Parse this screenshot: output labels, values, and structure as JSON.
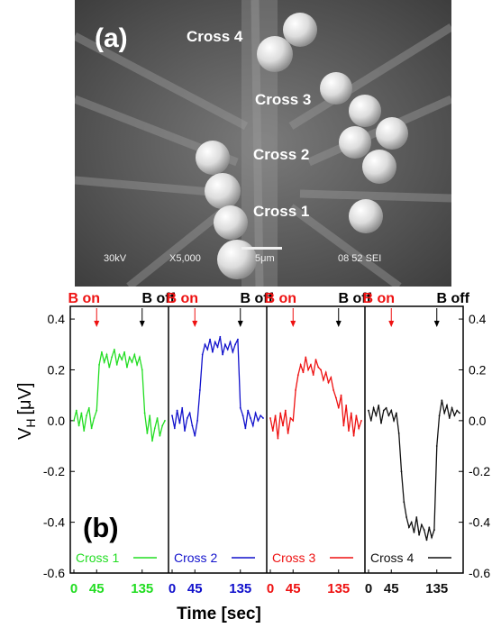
{
  "sem": {
    "panel_label": "(a)",
    "cross_labels": [
      "Cross 4",
      "Cross 3",
      "Cross 2",
      "Cross 1"
    ],
    "footer": {
      "voltage": "30kV",
      "magnification": "X5,000",
      "scale": "5μm",
      "code": "08 52 SEI"
    }
  },
  "chart_data": {
    "type": "line",
    "panel_label": "(b)",
    "xlabel": "Time [sec]",
    "ylabel": "V",
    "ylabel_sub": "H",
    "ylabel_unit": "[μV]",
    "ylim": [
      -0.6,
      0.45
    ],
    "yticks": [
      0.4,
      0.2,
      0.0,
      -0.2,
      -0.4,
      -0.6
    ],
    "ytick_labels": [
      "0.4",
      "0.2",
      "0.0",
      "-0.2",
      "-0.4",
      "-0.6"
    ],
    "xlim": [
      0,
      180
    ],
    "xtick_values": [
      0,
      45,
      135
    ],
    "xtick_labels": [
      "0",
      "45",
      "135"
    ],
    "annotations": {
      "b_on": "B on",
      "b_off": "B off",
      "b_on_time": 45,
      "b_off_time": 135
    },
    "series": [
      {
        "name": "Cross 1",
        "color": "#22dd22",
        "base": 0.0,
        "step": 0.25,
        "x": [
          0,
          5,
          10,
          15,
          20,
          25,
          30,
          35,
          40,
          45,
          50,
          55,
          60,
          65,
          70,
          75,
          80,
          85,
          90,
          95,
          100,
          105,
          110,
          115,
          120,
          125,
          130,
          135,
          140,
          145,
          150,
          155,
          160,
          165,
          170,
          175,
          180
        ],
        "values": [
          0.0,
          0.04,
          -0.02,
          0.03,
          -0.04,
          0.02,
          0.05,
          -0.03,
          0.01,
          0.04,
          0.22,
          0.27,
          0.23,
          0.26,
          0.21,
          0.25,
          0.28,
          0.22,
          0.26,
          0.24,
          0.27,
          0.21,
          0.25,
          0.23,
          0.26,
          0.22,
          0.25,
          0.2,
          0.03,
          -0.05,
          0.02,
          -0.08,
          -0.03,
          0.01,
          -0.06,
          -0.02,
          0.0
        ]
      },
      {
        "name": "Cross 2",
        "color": "#1111cc",
        "base": 0.0,
        "step": 0.3,
        "x": [
          0,
          5,
          10,
          15,
          20,
          25,
          30,
          35,
          40,
          45,
          50,
          55,
          60,
          65,
          70,
          75,
          80,
          85,
          90,
          95,
          100,
          105,
          110,
          115,
          120,
          125,
          130,
          135,
          140,
          145,
          150,
          155,
          160,
          165,
          170,
          175,
          180
        ],
        "values": [
          0.02,
          -0.03,
          0.04,
          -0.01,
          0.05,
          -0.04,
          0.01,
          0.03,
          -0.02,
          -0.06,
          0.0,
          0.12,
          0.26,
          0.3,
          0.28,
          0.32,
          0.27,
          0.31,
          0.29,
          0.33,
          0.26,
          0.3,
          0.28,
          0.31,
          0.27,
          0.3,
          0.32,
          0.05,
          0.02,
          -0.03,
          0.04,
          0.01,
          -0.02,
          0.03,
          0.0,
          0.02,
          0.01
        ]
      },
      {
        "name": "Cross 3",
        "color": "#ee1111",
        "base": 0.0,
        "step": 0.2,
        "x": [
          0,
          5,
          10,
          15,
          20,
          25,
          30,
          35,
          40,
          45,
          50,
          55,
          60,
          65,
          70,
          75,
          80,
          85,
          90,
          95,
          100,
          105,
          110,
          115,
          120,
          125,
          130,
          135,
          140,
          145,
          150,
          155,
          160,
          165,
          170,
          175,
          180
        ],
        "values": [
          0.01,
          -0.04,
          0.02,
          -0.07,
          0.03,
          -0.02,
          0.04,
          -0.05,
          0.01,
          0.0,
          0.12,
          0.18,
          0.22,
          0.19,
          0.25,
          0.2,
          0.22,
          0.18,
          0.24,
          0.21,
          0.2,
          0.16,
          0.19,
          0.15,
          0.17,
          0.12,
          0.09,
          0.05,
          0.1,
          -0.02,
          0.06,
          -0.04,
          0.03,
          -0.06,
          0.02,
          -0.03,
          0.0
        ]
      },
      {
        "name": "Cross 4",
        "color": "#111111",
        "base": 0.0,
        "step": -0.42,
        "x": [
          0,
          5,
          10,
          15,
          20,
          25,
          30,
          35,
          40,
          45,
          50,
          55,
          60,
          65,
          70,
          75,
          80,
          85,
          90,
          95,
          100,
          105,
          110,
          115,
          120,
          125,
          130,
          135,
          140,
          145,
          150,
          155,
          160,
          165,
          170,
          175,
          180
        ],
        "values": [
          0.04,
          0.0,
          0.05,
          0.02,
          0.06,
          -0.01,
          0.04,
          0.05,
          0.02,
          0.04,
          0.0,
          0.03,
          -0.05,
          -0.2,
          -0.32,
          -0.38,
          -0.42,
          -0.4,
          -0.44,
          -0.38,
          -0.45,
          -0.41,
          -0.43,
          -0.47,
          -0.42,
          -0.46,
          -0.43,
          -0.1,
          0.02,
          0.08,
          0.03,
          0.06,
          0.01,
          0.05,
          0.02,
          0.04,
          0.03
        ]
      }
    ]
  }
}
